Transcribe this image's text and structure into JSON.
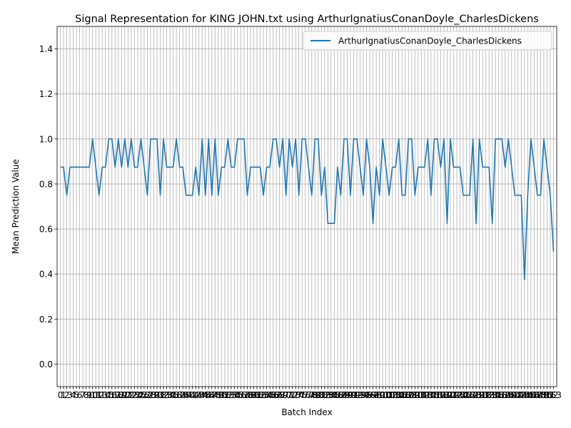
{
  "chart_data": {
    "type": "line",
    "title": "Signal Representation for KING JOHN.txt using ArthurIgnatiusConanDoyle_CharlesDickens",
    "xlabel": "Batch Index",
    "ylabel": "Mean Prediction Value",
    "ylim": [
      -0.1,
      1.5
    ],
    "xlim": [
      -1,
      154
    ],
    "yticks": [
      "0.0",
      "0.2",
      "0.4",
      "0.6",
      "0.8",
      "1.0",
      "1.2",
      "1.4"
    ],
    "grid": true,
    "legend_position": "top-right",
    "series": [
      {
        "name": "ArthurIgnatiusConanDoyle_CharlesDickens",
        "color": "#1f77b4",
        "x": [
          0,
          1,
          2,
          3,
          4,
          5,
          6,
          7,
          8,
          9,
          10,
          11,
          12,
          13,
          14,
          15,
          16,
          17,
          18,
          19,
          20,
          21,
          22,
          23,
          24,
          25,
          26,
          27,
          28,
          29,
          30,
          31,
          32,
          33,
          34,
          35,
          36,
          37,
          38,
          39,
          40,
          41,
          42,
          43,
          44,
          45,
          46,
          47,
          48,
          49,
          50,
          51,
          52,
          53,
          54,
          55,
          56,
          57,
          58,
          59,
          60,
          61,
          62,
          63,
          64,
          65,
          66,
          67,
          68,
          69,
          70,
          71,
          72,
          73,
          74,
          75,
          76,
          77,
          78,
          79,
          80,
          81,
          82,
          83,
          84,
          85,
          86,
          87,
          88,
          89,
          90,
          91,
          92,
          93,
          94,
          95,
          96,
          97,
          98,
          99,
          100,
          101,
          102,
          103,
          104,
          105,
          106,
          107,
          108,
          109,
          110,
          111,
          112,
          113,
          114,
          115,
          116,
          117,
          118,
          119,
          120,
          121,
          122,
          123,
          124,
          125,
          126,
          127,
          128,
          129,
          130,
          131,
          132,
          133,
          134,
          135,
          136,
          137,
          138,
          139,
          140,
          141,
          142,
          143,
          144,
          145,
          146,
          147,
          148,
          149,
          150,
          151,
          152,
          153
        ],
        "values": [
          0.875,
          0.875,
          0.75,
          0.875,
          0.875,
          0.875,
          0.875,
          0.875,
          0.875,
          0.875,
          1.0,
          0.875,
          0.75,
          0.875,
          0.875,
          1.0,
          1.0,
          0.875,
          1.0,
          0.875,
          1.0,
          0.875,
          1.0,
          0.875,
          0.875,
          1.0,
          0.875,
          0.75,
          1.0,
          1.0,
          1.0,
          0.75,
          1.0,
          0.875,
          0.875,
          0.875,
          1.0,
          0.875,
          0.875,
          0.75,
          0.75,
          0.75,
          0.875,
          0.75,
          1.0,
          0.75,
          1.0,
          0.75,
          1.0,
          0.75,
          0.875,
          0.875,
          1.0,
          0.875,
          0.875,
          1.0,
          1.0,
          1.0,
          0.75,
          0.875,
          0.875,
          0.875,
          0.875,
          0.75,
          0.875,
          0.875,
          1.0,
          1.0,
          0.875,
          1.0,
          0.75,
          1.0,
          0.875,
          1.0,
          0.75,
          1.0,
          1.0,
          0.875,
          0.75,
          1.0,
          1.0,
          0.75,
          0.875,
          0.625,
          0.625,
          0.625,
          0.875,
          0.75,
          1.0,
          1.0,
          0.75,
          1.0,
          1.0,
          0.875,
          0.75,
          1.0,
          0.875,
          0.625,
          0.875,
          0.75,
          1.0,
          0.875,
          0.75,
          0.875,
          0.875,
          1.0,
          0.75,
          0.75,
          1.0,
          1.0,
          0.75,
          0.875,
          0.875,
          0.875,
          1.0,
          0.75,
          1.0,
          1.0,
          0.875,
          1.0,
          0.625,
          1.0,
          0.875,
          0.875,
          0.875,
          0.75,
          0.75,
          0.75,
          1.0,
          0.625,
          1.0,
          0.875,
          0.875,
          0.875,
          0.625,
          1.0,
          1.0,
          1.0,
          0.875,
          1.0,
          0.875,
          0.75,
          0.75,
          0.75,
          0.375,
          0.75,
          1.0,
          0.875,
          0.75,
          0.75,
          1.0,
          0.875,
          0.75,
          0.5
        ]
      }
    ]
  }
}
